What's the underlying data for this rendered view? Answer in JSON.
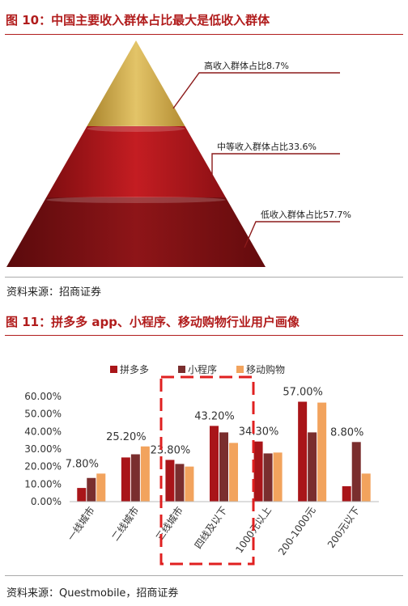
{
  "figure10": {
    "title": "图 10：中国主要收入群体占比最大是低收入群体",
    "source": "资料来源：招商证券",
    "chart_data": {
      "type": "pyramid",
      "title": "",
      "segments": [
        {
          "label": "高收入群体占比8.7%",
          "value": 8.7,
          "color": "#c9a646"
        },
        {
          "label": "中等收入群体占比33.6%",
          "value": 33.6,
          "color": "#a91519"
        },
        {
          "label": "低收入群体占比57.7%",
          "value": 57.7,
          "color": "#7c1113"
        }
      ]
    }
  },
  "figure11": {
    "title": "图 11：拼多多 app、小程序、移动购物行业用户画像",
    "source": "资料来源：Questmobile，招商证券",
    "chart_data": {
      "type": "bar",
      "title": "",
      "xlabel": "",
      "ylabel": "",
      "categories": [
        "一线城市",
        "二线城市",
        "三线城市",
        "四线及以下",
        "1000元以上",
        "200-1000元",
        "200元以下"
      ],
      "series": [
        {
          "name": "拼多多",
          "color": "#a91519",
          "values": [
            7.8,
            25.2,
            23.8,
            43.2,
            34.3,
            57.0,
            8.8
          ]
        },
        {
          "name": "小程序",
          "color": "#7a2e2e",
          "values": [
            13.5,
            27.0,
            21.5,
            39.5,
            27.5,
            39.5,
            34.0
          ]
        },
        {
          "name": "移动购物",
          "color": "#f2a35d",
          "values": [
            16.0,
            31.5,
            20.0,
            33.5,
            28.0,
            56.5,
            16.0
          ]
        }
      ],
      "data_labels": [
        "7.80%",
        "25.20%",
        "23.80%",
        "43.20%",
        "34.30%",
        "57.00%",
        "8.80%"
      ],
      "yticks": [
        "0.00%",
        "10.00%",
        "20.00%",
        "30.00%",
        "40.00%",
        "50.00%",
        "60.00%"
      ],
      "ylim": [
        0,
        60
      ],
      "highlight_categories": [
        "三线城市",
        "四线及以下"
      ],
      "legend_position": "top"
    }
  }
}
